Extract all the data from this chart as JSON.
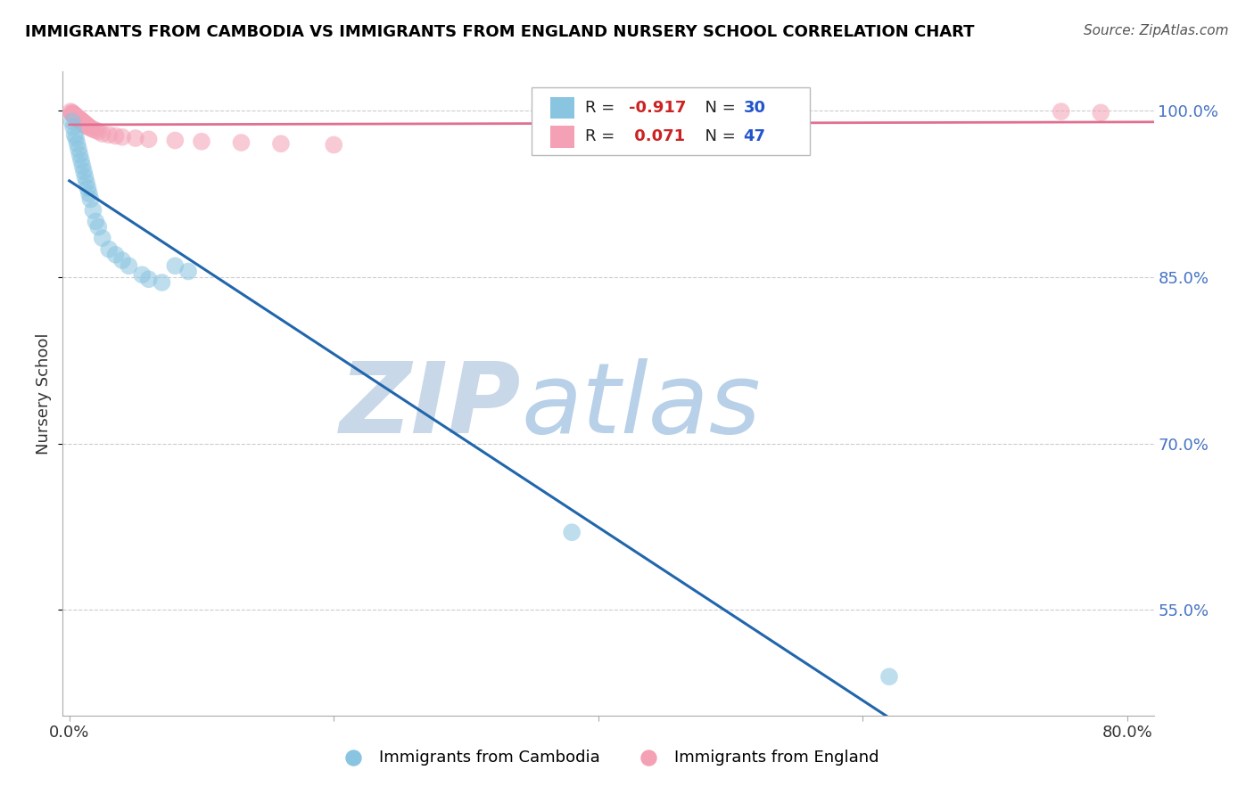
{
  "title": "IMMIGRANTS FROM CAMBODIA VS IMMIGRANTS FROM ENGLAND NURSERY SCHOOL CORRELATION CHART",
  "source": "Source: ZipAtlas.com",
  "ylabel": "Nursery School",
  "legend_label_1": "Immigrants from Cambodia",
  "legend_label_2": "Immigrants from England",
  "R1": -0.917,
  "N1": 30,
  "R2": 0.071,
  "N2": 47,
  "color_blue": "#89c4e1",
  "color_pink": "#f4a0b5",
  "line_color_blue": "#2166ac",
  "line_color_pink": "#e07090",
  "watermark_color": "#d8eaf7",
  "xlim_min": -0.005,
  "xlim_max": 0.82,
  "ylim_min": 0.455,
  "ylim_max": 1.035,
  "cambodia_x": [
    0.002,
    0.003,
    0.004,
    0.005,
    0.006,
    0.007,
    0.008,
    0.009,
    0.01,
    0.011,
    0.012,
    0.013,
    0.014,
    0.015,
    0.016,
    0.018,
    0.02,
    0.022,
    0.025,
    0.03,
    0.035,
    0.04,
    0.045,
    0.055,
    0.06,
    0.07,
    0.08,
    0.09,
    0.38,
    0.62
  ],
  "cambodia_y": [
    0.99,
    0.985,
    0.978,
    0.975,
    0.97,
    0.965,
    0.96,
    0.955,
    0.95,
    0.945,
    0.94,
    0.935,
    0.93,
    0.925,
    0.92,
    0.91,
    0.9,
    0.895,
    0.885,
    0.875,
    0.87,
    0.865,
    0.86,
    0.852,
    0.848,
    0.845,
    0.86,
    0.855,
    0.62,
    0.49
  ],
  "england_x": [
    0.001,
    0.002,
    0.002,
    0.003,
    0.003,
    0.003,
    0.004,
    0.004,
    0.004,
    0.005,
    0.005,
    0.005,
    0.006,
    0.006,
    0.007,
    0.007,
    0.008,
    0.008,
    0.009,
    0.009,
    0.01,
    0.01,
    0.011,
    0.011,
    0.012,
    0.012,
    0.013,
    0.013,
    0.014,
    0.015,
    0.016,
    0.018,
    0.02,
    0.022,
    0.025,
    0.03,
    0.035,
    0.04,
    0.05,
    0.06,
    0.08,
    0.1,
    0.13,
    0.16,
    0.2,
    0.75,
    0.78
  ],
  "england_y": [
    0.999,
    0.998,
    0.997,
    0.997,
    0.996,
    0.996,
    0.996,
    0.995,
    0.995,
    0.995,
    0.994,
    0.994,
    0.993,
    0.993,
    0.993,
    0.992,
    0.992,
    0.991,
    0.991,
    0.99,
    0.99,
    0.989,
    0.989,
    0.988,
    0.988,
    0.987,
    0.987,
    0.986,
    0.986,
    0.985,
    0.984,
    0.983,
    0.982,
    0.981,
    0.979,
    0.978,
    0.977,
    0.976,
    0.975,
    0.974,
    0.973,
    0.972,
    0.971,
    0.97,
    0.969,
    0.999,
    0.998
  ],
  "yticks": [
    0.55,
    0.7,
    0.85,
    1.0
  ],
  "ytick_labels": [
    "55.0%",
    "70.0%",
    "85.0%",
    "100.0%"
  ],
  "xticks": [
    0.0,
    0.2,
    0.4,
    0.6,
    0.8
  ],
  "xtick_labels": [
    "0.0%",
    "",
    "",
    "",
    "80.0%"
  ]
}
